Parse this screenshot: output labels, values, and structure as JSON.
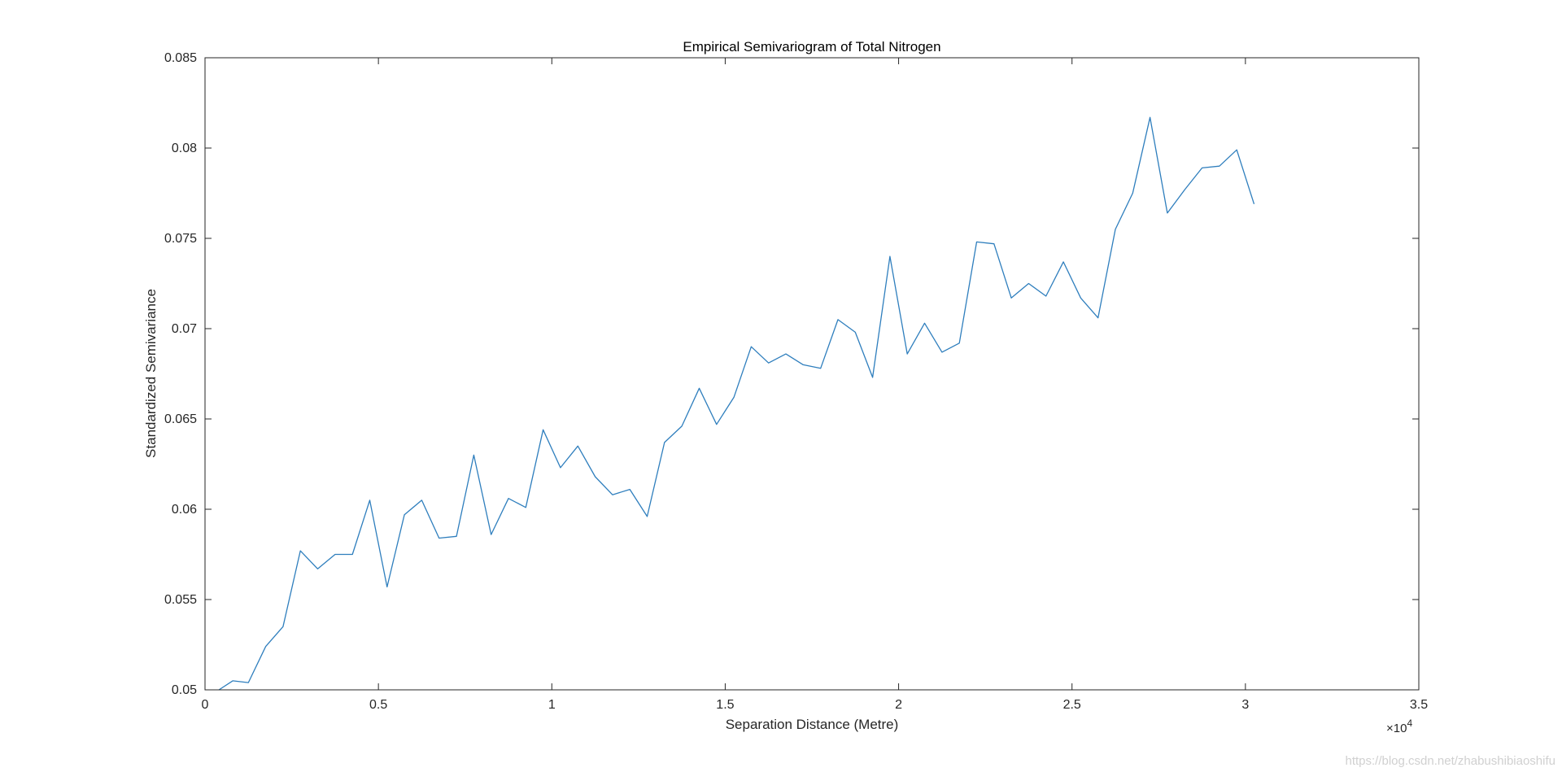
{
  "chart_data": {
    "type": "line",
    "title": "Empirical Semivariogram of Total Nitrogen",
    "xlabel": "Separation Distance (Metre)",
    "ylabel": "Standardized Semivariance",
    "xlim": [
      0,
      35000
    ],
    "ylim": [
      0.05,
      0.085
    ],
    "x_ticks": [
      0,
      5000,
      10000,
      15000,
      20000,
      25000,
      30000,
      35000
    ],
    "x_tick_labels": [
      "0",
      "0.5",
      "1",
      "1.5",
      "2",
      "2.5",
      "3",
      "3.5"
    ],
    "x_exponent_label": "×10",
    "x_exponent_power": "4",
    "y_ticks": [
      0.05,
      0.055,
      0.06,
      0.065,
      0.07,
      0.075,
      0.08,
      0.085
    ],
    "y_tick_labels": [
      "0.05",
      "0.055",
      "0.06",
      "0.065",
      "0.07",
      "0.075",
      "0.08",
      "0.085"
    ],
    "grid": false,
    "box": true,
    "series": [
      {
        "color": "#2e7ebd",
        "x": [
          400,
          800,
          1250,
          1750,
          2250,
          2750,
          3250,
          3750,
          4250,
          4750,
          5250,
          5750,
          6250,
          6750,
          7250,
          7750,
          8250,
          8750,
          9250,
          9750,
          10250,
          10750,
          11250,
          11750,
          12250,
          12750,
          13250,
          13750,
          14250,
          14750,
          15250,
          15750,
          16250,
          16750,
          17250,
          17750,
          18250,
          18750,
          19250,
          19750,
          20250,
          20750,
          21250,
          21750,
          22250,
          22750,
          23250,
          23750,
          24250,
          24750,
          25250,
          25750,
          26250,
          26750,
          27250,
          27750,
          28250,
          28750,
          29250,
          29750,
          30250
        ],
        "y": [
          0.05,
          0.0505,
          0.0504,
          0.0524,
          0.0535,
          0.0577,
          0.0567,
          0.0575,
          0.0575,
          0.0605,
          0.0557,
          0.0597,
          0.0605,
          0.0584,
          0.0585,
          0.063,
          0.0586,
          0.0606,
          0.0601,
          0.0644,
          0.0623,
          0.0635,
          0.0618,
          0.0608,
          0.0611,
          0.0596,
          0.0637,
          0.0646,
          0.0667,
          0.0647,
          0.0662,
          0.069,
          0.0681,
          0.0686,
          0.068,
          0.0678,
          0.0705,
          0.0698,
          0.0673,
          0.074,
          0.0686,
          0.0703,
          0.0687,
          0.0692,
          0.0748,
          0.0747,
          0.0717,
          0.0725,
          0.0718,
          0.0737,
          0.0717,
          0.0706,
          0.0755,
          0.0775,
          0.0817,
          0.0764,
          0.0777,
          0.0789,
          0.079,
          0.0799,
          0.0769
        ]
      }
    ]
  },
  "watermark": "https://blog.csdn.net/zhabushibiaoshifu"
}
